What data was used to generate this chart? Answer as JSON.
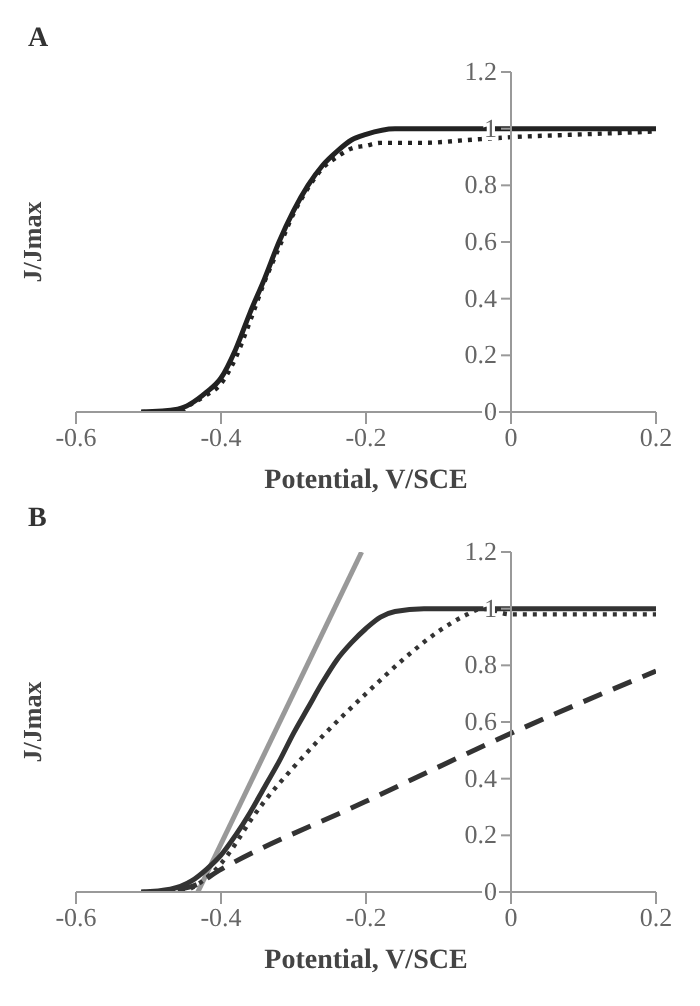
{
  "chart_data": [
    {
      "type": "line",
      "title": "A",
      "xlabel": "Potential, V/SCE",
      "ylabel": "J/Jmax",
      "xlim": [
        -0.6,
        0.2
      ],
      "xticks": [
        -0.6,
        -0.4,
        -0.2,
        0,
        0.2
      ],
      "ylim": [
        0,
        1.2
      ],
      "yticks": [
        0,
        0.2,
        0.4,
        0.6,
        0.8,
        1,
        1.2
      ],
      "grid": false,
      "legend": false,
      "marker": "none",
      "series": [
        {
          "color": "#222222",
          "line_style": "solid",
          "x": [
            -0.51,
            -0.46,
            -0.42,
            -0.4,
            -0.38,
            -0.36,
            -0.34,
            -0.32,
            -0.3,
            -0.28,
            -0.26,
            -0.24,
            -0.22,
            -0.2,
            -0.16,
            -0.12,
            0,
            0.2
          ],
          "values": [
            0,
            0.01,
            0.07,
            0.12,
            0.22,
            0.35,
            0.47,
            0.6,
            0.71,
            0.8,
            0.87,
            0.92,
            0.96,
            0.98,
            1,
            1,
            1,
            1
          ]
        },
        {
          "color": "#222222",
          "line_style": "dotted",
          "x": [
            -0.51,
            -0.46,
            -0.44,
            -0.42,
            -0.4,
            -0.38,
            -0.36,
            -0.34,
            -0.32,
            -0.3,
            -0.28,
            -0.26,
            -0.24,
            -0.22,
            -0.2,
            -0.18,
            -0.12,
            -0.06,
            0,
            0.1,
            0.2
          ],
          "values": [
            0,
            0,
            0.03,
            0.06,
            0.1,
            0.19,
            0.32,
            0.46,
            0.58,
            0.7,
            0.79,
            0.86,
            0.9,
            0.93,
            0.94,
            0.95,
            0.95,
            0.96,
            0.97,
            0.98,
            0.99
          ]
        }
      ]
    },
    {
      "type": "line",
      "title": "B",
      "xlabel": "Potential, V/SCE",
      "ylabel": "J/Jmax",
      "xlim": [
        -0.6,
        0.2
      ],
      "xticks": [
        -0.6,
        -0.4,
        -0.2,
        0,
        0.2
      ],
      "ylim": [
        0,
        1.2
      ],
      "yticks": [
        0,
        0.2,
        0.4,
        0.6,
        0.8,
        1,
        1.2
      ],
      "grid": false,
      "legend": false,
      "marker": "none",
      "series": [
        {
          "color": "#999999",
          "line_style": "solid",
          "x": [
            -0.432,
            -0.206
          ],
          "values": [
            0,
            1.2
          ]
        },
        {
          "color": "#333333",
          "line_style": "solid",
          "x": [
            -0.51,
            -0.47,
            -0.44,
            -0.42,
            -0.4,
            -0.38,
            -0.36,
            -0.34,
            -0.32,
            -0.3,
            -0.28,
            -0.26,
            -0.24,
            -0.22,
            -0.2,
            -0.18,
            -0.16,
            -0.12,
            0,
            0.2
          ],
          "values": [
            0,
            0.01,
            0.04,
            0.08,
            0.13,
            0.2,
            0.28,
            0.37,
            0.46,
            0.56,
            0.65,
            0.74,
            0.82,
            0.88,
            0.93,
            0.97,
            0.99,
            1,
            1,
            1
          ]
        },
        {
          "color": "#333333",
          "line_style": "dotted",
          "x": [
            -0.51,
            -0.46,
            -0.42,
            -0.4,
            -0.38,
            -0.36,
            -0.34,
            -0.3,
            -0.26,
            -0.2,
            -0.14,
            -0.1,
            -0.06,
            -0.04,
            0,
            0.1,
            0.2
          ],
          "values": [
            0,
            0,
            0.05,
            0.1,
            0.17,
            0.25,
            0.32,
            0.44,
            0.55,
            0.7,
            0.84,
            0.92,
            0.98,
            1,
            0.98,
            0.98,
            0.98
          ]
        },
        {
          "color": "#333333",
          "line_style": "dashed",
          "x": [
            -0.46,
            -0.44,
            -0.4,
            -0.2,
            0,
            0.2
          ],
          "values": [
            0.01,
            0.02,
            0.08,
            0.32,
            0.56,
            0.78
          ]
        }
      ]
    }
  ]
}
